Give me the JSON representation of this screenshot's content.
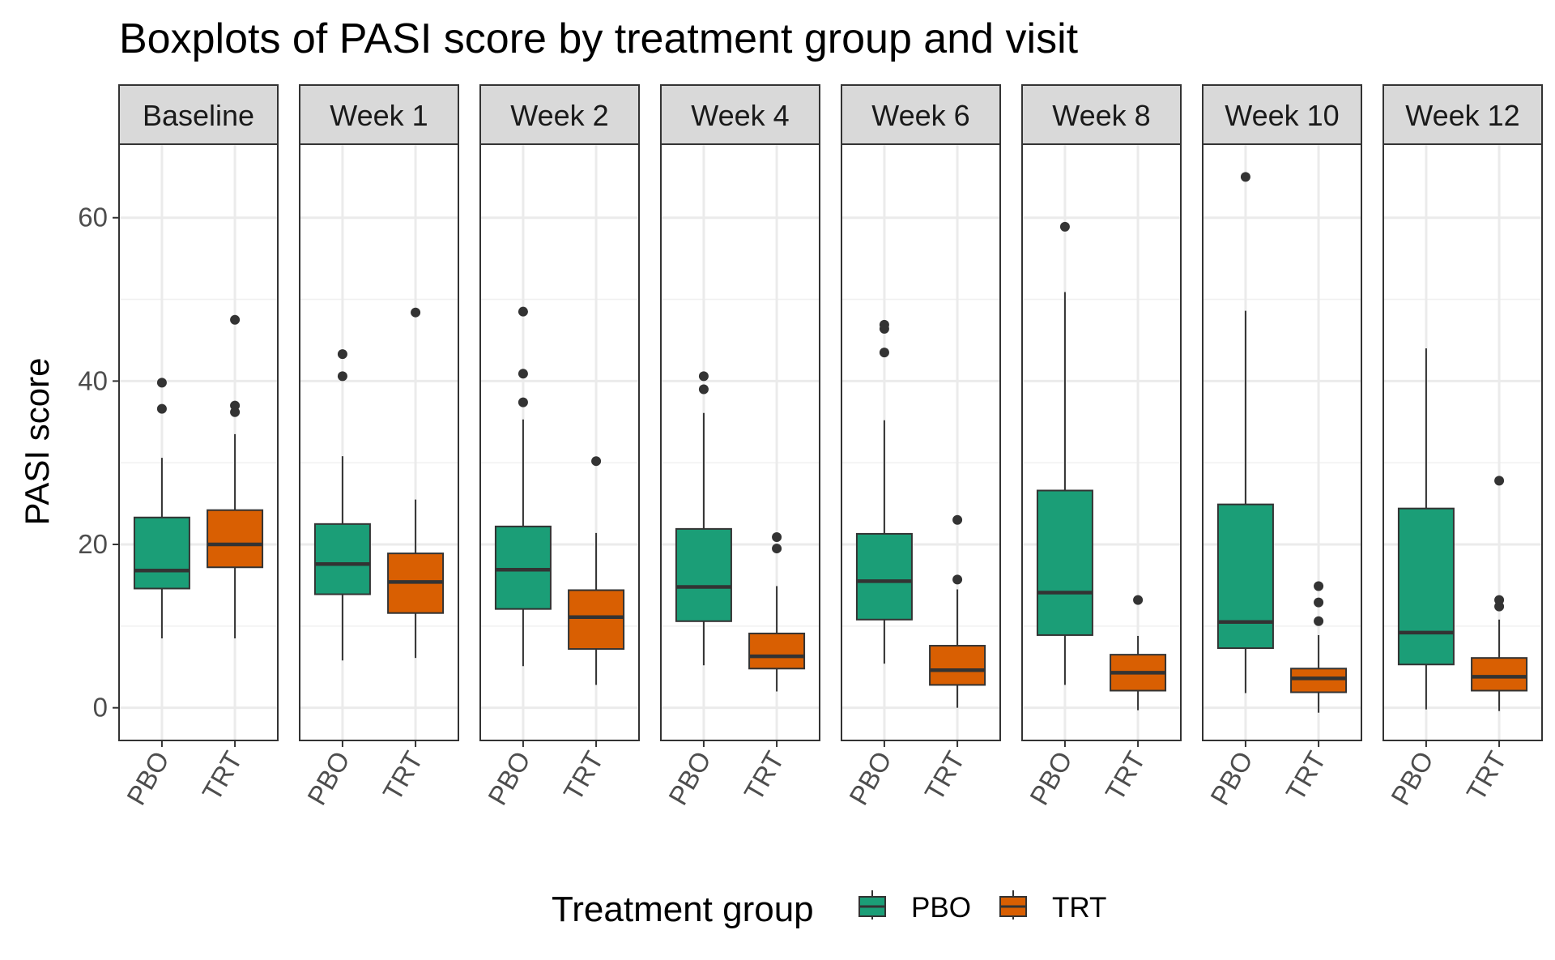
{
  "chart_data": {
    "type": "boxplot",
    "title": "Boxplots of PASI score by treatment group and visit",
    "ylabel": "PASI score",
    "xlabel": "",
    "ylim": [
      -4,
      69
    ],
    "yticks": [
      0,
      20,
      40,
      60
    ],
    "categories": [
      "PBO",
      "TRT"
    ],
    "grid": true,
    "legend": {
      "title": "Treatment group",
      "placement": "bottom",
      "entries": [
        "PBO",
        "TRT"
      ]
    },
    "colors": {
      "PBO": "#1b9e77",
      "TRT": "#d95f02"
    },
    "panels": [
      {
        "visit": "Baseline",
        "boxes": [
          {
            "group": "PBO",
            "whisker_low": 8.5,
            "q1": 14.6,
            "median": 16.8,
            "q3": 23.3,
            "whisker_high": 30.6,
            "outliers": [
              36.6,
              39.8
            ]
          },
          {
            "group": "TRT",
            "whisker_low": 8.5,
            "q1": 17.2,
            "median": 20.0,
            "q3": 24.2,
            "whisker_high": 33.5,
            "outliers": [
              36.2,
              37.0,
              47.5
            ]
          }
        ]
      },
      {
        "visit": "Week 1",
        "boxes": [
          {
            "group": "PBO",
            "whisker_low": 5.8,
            "q1": 13.9,
            "median": 17.6,
            "q3": 22.5,
            "whisker_high": 30.8,
            "outliers": [
              40.6,
              43.3
            ]
          },
          {
            "group": "TRT",
            "whisker_low": 6.1,
            "q1": 11.6,
            "median": 15.4,
            "q3": 18.9,
            "whisker_high": 25.5,
            "outliers": [
              48.4
            ]
          }
        ]
      },
      {
        "visit": "Week 2",
        "boxes": [
          {
            "group": "PBO",
            "whisker_low": 5.1,
            "q1": 12.1,
            "median": 16.9,
            "q3": 22.2,
            "whisker_high": 35.3,
            "outliers": [
              37.4,
              40.9,
              48.5
            ]
          },
          {
            "group": "TRT",
            "whisker_low": 2.8,
            "q1": 7.2,
            "median": 11.1,
            "q3": 14.4,
            "whisker_high": 21.4,
            "outliers": [
              30.2
            ]
          }
        ]
      },
      {
        "visit": "Week 4",
        "boxes": [
          {
            "group": "PBO",
            "whisker_low": 5.2,
            "q1": 10.6,
            "median": 14.8,
            "q3": 21.9,
            "whisker_high": 36.1,
            "outliers": [
              39.0,
              40.6
            ]
          },
          {
            "group": "TRT",
            "whisker_low": 2.0,
            "q1": 4.8,
            "median": 6.3,
            "q3": 9.1,
            "whisker_high": 14.9,
            "outliers": [
              19.5,
              20.9
            ]
          }
        ]
      },
      {
        "visit": "Week 6",
        "boxes": [
          {
            "group": "PBO",
            "whisker_low": 5.4,
            "q1": 10.8,
            "median": 15.5,
            "q3": 21.3,
            "whisker_high": 35.2,
            "outliers": [
              43.5,
              46.4,
              46.9
            ]
          },
          {
            "group": "TRT",
            "whisker_low": 0.0,
            "q1": 2.8,
            "median": 4.6,
            "q3": 7.6,
            "whisker_high": 14.5,
            "outliers": [
              15.7,
              23.0
            ]
          }
        ]
      },
      {
        "visit": "Week 8",
        "boxes": [
          {
            "group": "PBO",
            "whisker_low": 2.8,
            "q1": 8.9,
            "median": 14.1,
            "q3": 26.6,
            "whisker_high": 50.9,
            "outliers": [
              58.9
            ]
          },
          {
            "group": "TRT",
            "whisker_low": -0.3,
            "q1": 2.1,
            "median": 4.3,
            "q3": 6.5,
            "whisker_high": 8.8,
            "outliers": [
              13.2
            ]
          }
        ]
      },
      {
        "visit": "Week 10",
        "boxes": [
          {
            "group": "PBO",
            "whisker_low": 1.8,
            "q1": 7.3,
            "median": 10.5,
            "q3": 24.9,
            "whisker_high": 48.6,
            "outliers": [
              65.0
            ]
          },
          {
            "group": "TRT",
            "whisker_low": -0.6,
            "q1": 1.9,
            "median": 3.6,
            "q3": 4.8,
            "whisker_high": 8.9,
            "outliers": [
              10.6,
              12.9,
              14.9
            ]
          }
        ]
      },
      {
        "visit": "Week 12",
        "boxes": [
          {
            "group": "PBO",
            "whisker_low": -0.2,
            "q1": 5.3,
            "median": 9.2,
            "q3": 24.4,
            "whisker_high": 44.0,
            "outliers": []
          },
          {
            "group": "TRT",
            "whisker_low": -0.4,
            "q1": 2.1,
            "median": 3.8,
            "q3": 6.1,
            "whisker_high": 10.8,
            "outliers": [
              12.4,
              13.2,
              27.8
            ]
          }
        ]
      }
    ]
  }
}
